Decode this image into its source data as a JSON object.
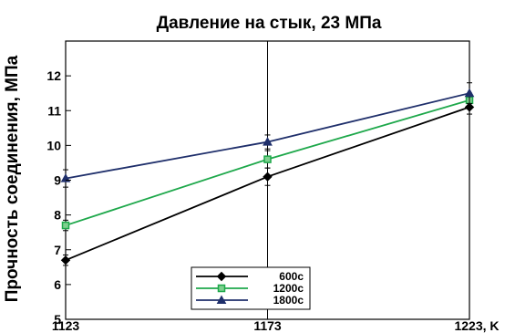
{
  "chart_data": {
    "type": "line",
    "title": "Давление на стык, 23 МПа",
    "ylabel": "Прочность соединения, МПа",
    "x_tick_labels": [
      "1123",
      "1173",
      "1223, K"
    ],
    "x": [
      1123,
      1173,
      1223
    ],
    "xlim": [
      1123,
      1223
    ],
    "ylim": [
      5,
      13
    ],
    "y_ticks": [
      5,
      6,
      7,
      8,
      9,
      10,
      11,
      12
    ],
    "grid": true,
    "legend_position": "bottom-center",
    "series": [
      {
        "name": "600с",
        "values": [
          6.7,
          9.1,
          11.1
        ],
        "errors": [
          0.15,
          0.25,
          0.2
        ],
        "color": "#000000",
        "marker": "diamond"
      },
      {
        "name": "1200с",
        "values": [
          7.7,
          9.6,
          11.3
        ],
        "errors": [
          0.15,
          0.25,
          0.2
        ],
        "color": "#1ea84b",
        "marker": "square"
      },
      {
        "name": "1800с",
        "values": [
          9.05,
          10.1,
          11.5
        ],
        "errors": [
          0.25,
          0.2,
          0.3
        ],
        "color": "#1f2f6b",
        "marker": "triangle"
      }
    ]
  }
}
